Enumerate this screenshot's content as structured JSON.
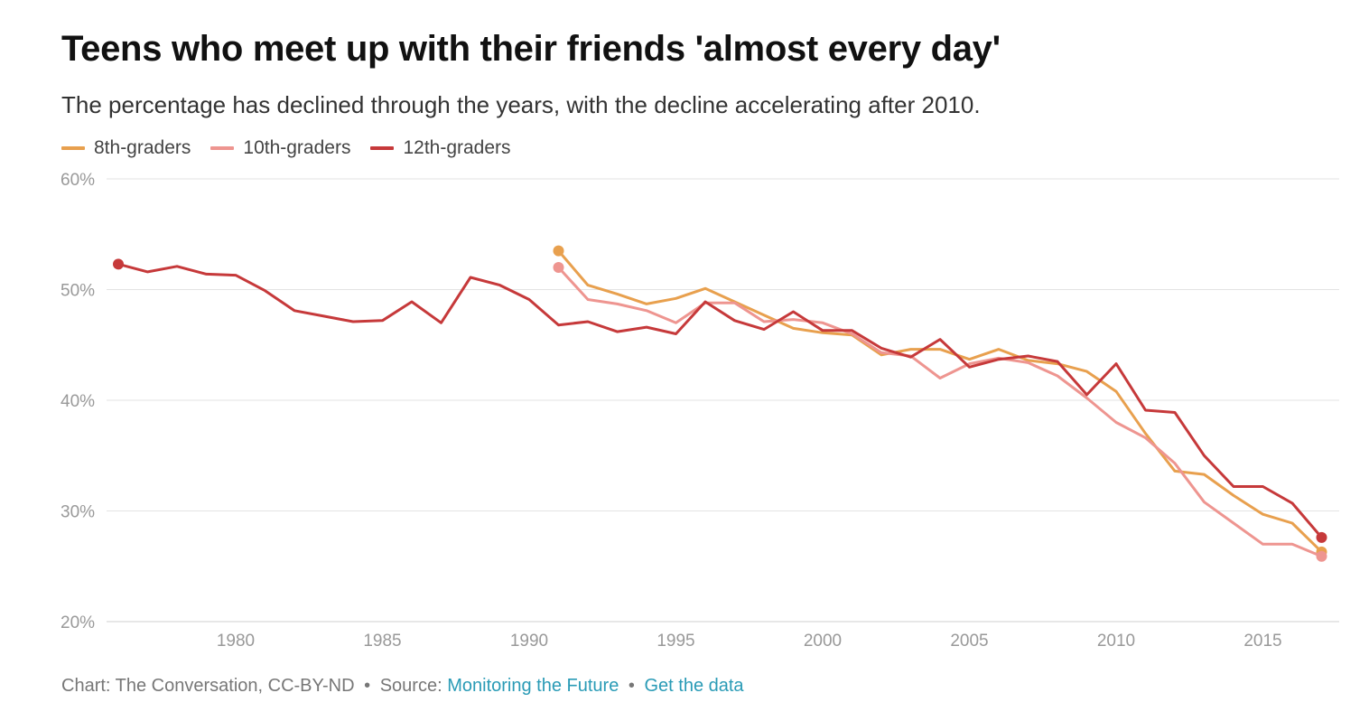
{
  "chart_title": "Teens who meet up with their friends 'almost every day'",
  "chart_subtitle": "The percentage has declined through the years, with the decline accelerating after 2010.",
  "footer": {
    "chart_credit": "Chart: The Conversation, CC-BY-ND",
    "separator": "•",
    "source_prefix": "Source:",
    "source_link": "Monitoring the Future",
    "data_link": "Get the data"
  },
  "colors": {
    "8th": "#e8a04e",
    "10th": "#ee9590",
    "12th": "#c6393a",
    "grid": "#e3e3e3",
    "axis_text": "#999999",
    "link": "#2a9bb6"
  },
  "chart_data": {
    "type": "line",
    "xlim": [
      1975.6,
      2017.6
    ],
    "ylim": [
      20,
      60
    ],
    "yticks": [
      20,
      30,
      40,
      50,
      60
    ],
    "ytick_labels": [
      "20%",
      "30%",
      "40%",
      "50%",
      "60%"
    ],
    "xticks": [
      1980,
      1985,
      1990,
      1995,
      2000,
      2005,
      2010,
      2015
    ],
    "xtick_labels": [
      "1980",
      "1985",
      "1990",
      "1995",
      "2000",
      "2005",
      "2010",
      "2015"
    ],
    "grid": true,
    "legend_position": "top-left",
    "series": [
      {
        "name": "8th-graders",
        "color_key": "8th",
        "x": [
          1991,
          1992,
          1993,
          1994,
          1995,
          1996,
          1997,
          1998,
          1999,
          2000,
          2001,
          2002,
          2003,
          2004,
          2005,
          2006,
          2007,
          2008,
          2009,
          2010,
          2011,
          2012,
          2013,
          2014,
          2015,
          2016,
          2017
        ],
        "y": [
          53.5,
          50.4,
          49.6,
          48.7,
          49.2,
          50.1,
          48.9,
          47.7,
          46.5,
          46.1,
          45.9,
          44.1,
          44.6,
          44.6,
          43.7,
          44.6,
          43.6,
          43.3,
          42.6,
          40.8,
          37,
          33.6,
          33.3,
          31.4,
          29.7,
          28.9,
          26.3
        ]
      },
      {
        "name": "10th-graders",
        "color_key": "10th",
        "x": [
          1991,
          1992,
          1993,
          1994,
          1995,
          1996,
          1997,
          1998,
          1999,
          2000,
          2001,
          2002,
          2003,
          2004,
          2005,
          2006,
          2007,
          2008,
          2009,
          2010,
          2011,
          2012,
          2013,
          2014,
          2015,
          2016,
          2017
        ],
        "y": [
          52,
          49.1,
          48.7,
          48.1,
          47,
          48.8,
          48.8,
          47.1,
          47.3,
          47,
          46,
          44.3,
          44,
          42,
          43.3,
          43.8,
          43.4,
          42.2,
          40.2,
          38,
          36.6,
          34.3,
          30.8,
          28.9,
          27,
          27,
          25.9
        ]
      },
      {
        "name": "12th-graders",
        "color_key": "12th",
        "x": [
          1976,
          1977,
          1978,
          1979,
          1980,
          1981,
          1982,
          1983,
          1984,
          1985,
          1986,
          1987,
          1988,
          1989,
          1990,
          1991,
          1992,
          1993,
          1994,
          1995,
          1996,
          1997,
          1998,
          1999,
          2000,
          2001,
          2002,
          2003,
          2004,
          2005,
          2006,
          2007,
          2008,
          2009,
          2010,
          2011,
          2012,
          2013,
          2014,
          2015,
          2016,
          2017
        ],
        "y": [
          52.3,
          51.6,
          52.1,
          51.4,
          51.3,
          49.9,
          48.1,
          47.6,
          47.1,
          47.2,
          48.9,
          47,
          51.1,
          50.4,
          49.1,
          46.8,
          47.1,
          46.2,
          46.6,
          46,
          48.9,
          47.2,
          46.4,
          48,
          46.3,
          46.3,
          44.7,
          43.9,
          45.5,
          43,
          43.7,
          44,
          43.5,
          40.5,
          43.3,
          39.1,
          38.9,
          35,
          32.2,
          32.2,
          30.7,
          27.6
        ]
      }
    ]
  }
}
